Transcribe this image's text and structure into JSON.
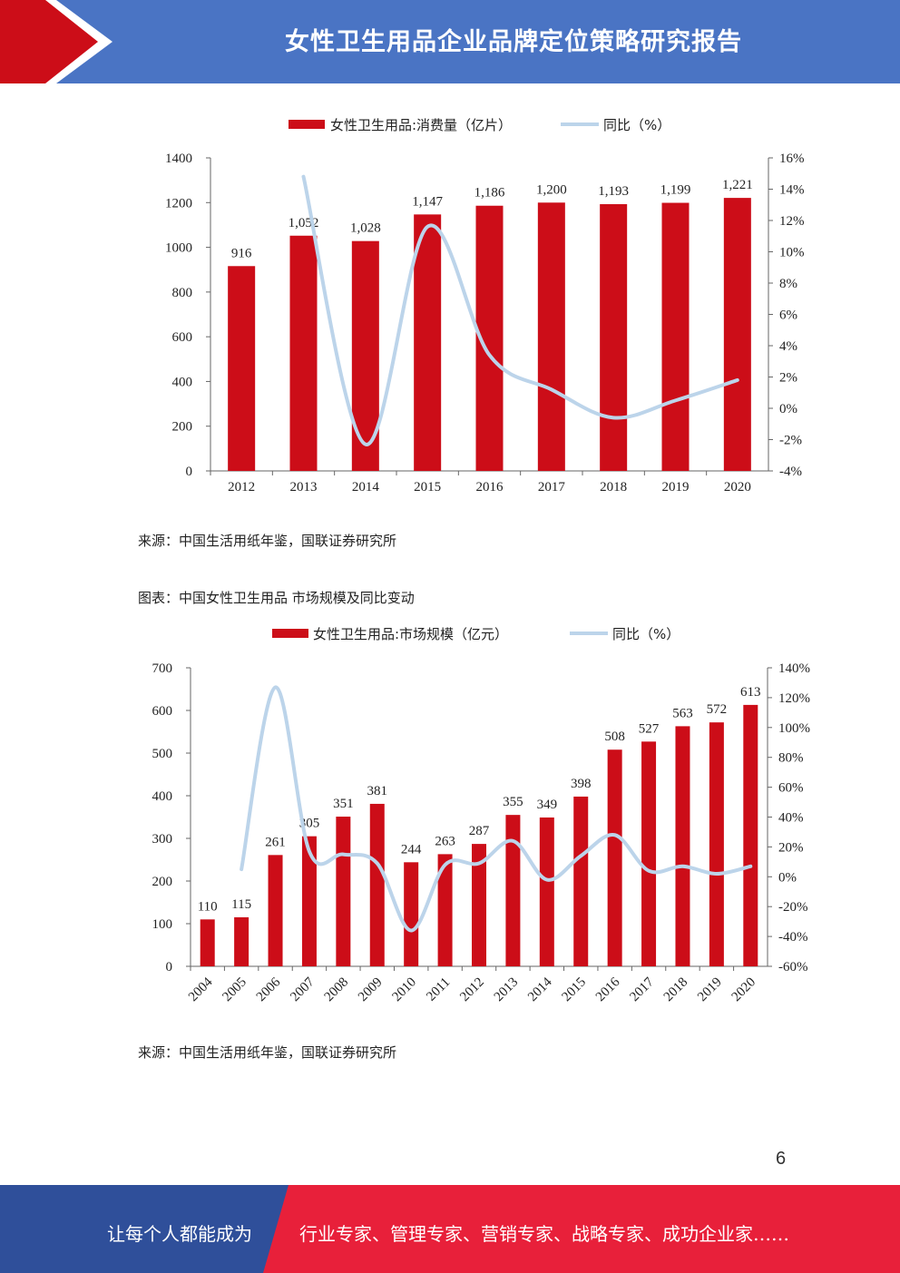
{
  "header": {
    "title": "女性卫生用品企业品牌定位策略研究报告"
  },
  "chart1": {
    "legend_bar": "女性卫生用品:消费量（亿片）",
    "legend_line": "同比（%）",
    "source": "来源：中国生活用纸年鉴，国联证券研究所"
  },
  "chart2": {
    "caption": "图表：中国女性卫生用品 市场规模及同比变动",
    "legend_bar": "女性卫生用品:市场规模（亿元）",
    "legend_line": "同比（%）",
    "source": "来源：中国生活用纸年鉴，国联证券研究所"
  },
  "chart_data": [
    {
      "type": "bar",
      "categories": [
        "2012",
        "2013",
        "2014",
        "2015",
        "2016",
        "2017",
        "2018",
        "2019",
        "2020"
      ],
      "series": [
        {
          "name": "女性卫生用品:消费量（亿片）",
          "values": [
            916,
            1052,
            1028,
            1147,
            1186,
            1200,
            1193,
            1199,
            1221
          ],
          "labels": [
            "916",
            "1,052",
            "1,028",
            "1,147",
            "1,186",
            "1,200",
            "1,193",
            "1,199",
            "1,221"
          ]
        },
        {
          "name": "同比（%）",
          "type": "line",
          "axis": "right",
          "values": [
            null,
            14.8,
            -2.3,
            11.6,
            3.4,
            1.2,
            -0.6,
            0.5,
            1.8
          ]
        }
      ],
      "ylim": [
        0,
        1400
      ],
      "yticks": [
        "0",
        "200",
        "400",
        "600",
        "800",
        "1000",
        "1200",
        "1400"
      ],
      "y2lim": [
        -4,
        16
      ],
      "y2ticks": [
        "-4%",
        "-2%",
        "0%",
        "2%",
        "4%",
        "6%",
        "8%",
        "10%",
        "12%",
        "14%",
        "16%"
      ],
      "bar_color": "#cc0d18",
      "line_color": "#bcd4ea"
    },
    {
      "type": "bar",
      "categories": [
        "2004",
        "2005",
        "2006",
        "2007",
        "2008",
        "2009",
        "2010",
        "2011",
        "2012",
        "2013",
        "2014",
        "2015",
        "2016",
        "2017",
        "2018",
        "2019",
        "2020"
      ],
      "series": [
        {
          "name": "女性卫生用品:市场规模（亿元）",
          "values": [
            110,
            115,
            261,
            305,
            351,
            381,
            244,
            263,
            287,
            355,
            349,
            398,
            508,
            527,
            563,
            572,
            613
          ],
          "labels": [
            "110",
            "115",
            "261",
            "305",
            "351",
            "381",
            "244",
            "263",
            "287",
            "355",
            "349",
            "398",
            "508",
            "527",
            "563",
            "572",
            "613"
          ]
        },
        {
          "name": "同比（%）",
          "type": "line",
          "axis": "right",
          "values": [
            null,
            5,
            127,
            17,
            15,
            9,
            -36,
            8,
            9,
            24,
            -2,
            14,
            28,
            4,
            7,
            2,
            7
          ]
        }
      ],
      "ylim": [
        0,
        700
      ],
      "yticks": [
        "0",
        "100",
        "200",
        "300",
        "400",
        "500",
        "600",
        "700"
      ],
      "y2lim": [
        -60,
        140
      ],
      "y2ticks": [
        "-60%",
        "-40%",
        "-20%",
        "0%",
        "20%",
        "40%",
        "60%",
        "80%",
        "100%",
        "120%",
        "140%"
      ],
      "bar_color": "#cc0d18",
      "line_color": "#bcd4ea"
    }
  ],
  "page": {
    "number": "6"
  },
  "footer": {
    "left_text": "让每个人都能成为",
    "right_text": "行业专家、管理专家、营销专家、战略专家、成功企业家……",
    "left_color": "#2f4f9a",
    "right_color": "#e8203a"
  }
}
